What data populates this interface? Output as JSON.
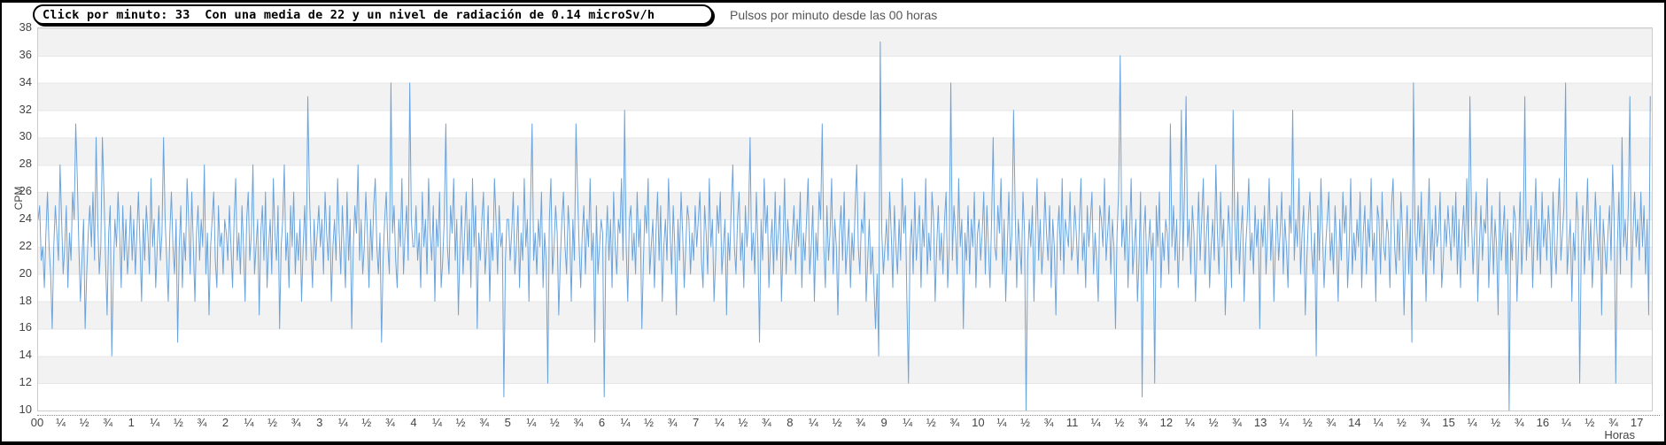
{
  "info_box": {
    "text": "Click por minuto: 33  Con una media de 22 y un nivel de radiación de 0.14 microSv/h",
    "click_por_minuto": 33,
    "media": 22,
    "radiacion_microsv_h": 0.14
  },
  "chart_data": {
    "type": "line",
    "title": "Pulsos por minuto desde las 00 horas",
    "xlabel": "Horas",
    "ylabel": "CPM",
    "ylim": [
      10,
      38
    ],
    "y_ticks": [
      38,
      36,
      34,
      32,
      30,
      28,
      26,
      24,
      22,
      20,
      18,
      16,
      14,
      12,
      10
    ],
    "x_tick_labels": [
      "00",
      "¼",
      "½",
      "¾",
      "1",
      "¼",
      "½",
      "¾",
      "2",
      "¼",
      "½",
      "¾",
      "3",
      "¼",
      "½",
      "¾",
      "4",
      "¼",
      "½",
      "¾",
      "5",
      "¼",
      "½",
      "¾",
      "6",
      "¼",
      "½",
      "¾",
      "7",
      "¼",
      "½",
      "¾",
      "8",
      "¼",
      "½",
      "¾",
      "9",
      "¼",
      "½",
      "¾",
      "10",
      "¼",
      "½",
      "¾",
      "11",
      "¼",
      "½",
      "¾",
      "12",
      "¼",
      "½",
      "¾",
      "13",
      "¼",
      "½",
      "¾",
      "14",
      "¼",
      "½",
      "¾",
      "15",
      "¼",
      "½",
      "¾",
      "16",
      "¼",
      "½",
      "¾",
      "17"
    ],
    "x_unit_minutes_per_point": 1,
    "grid": "horizontal-bands",
    "legend": "none",
    "line_color": "#6aa3dc",
    "band_colors": [
      "#f2f2f2",
      "#ffffff"
    ],
    "series": [
      {
        "name": "CPM",
        "values": [
          24,
          25,
          21,
          22,
          19,
          23,
          26,
          22,
          20,
          16,
          22,
          25,
          23,
          21,
          28,
          24,
          20,
          22,
          25,
          19,
          23,
          21,
          26,
          24,
          31,
          27,
          22,
          18,
          21,
          24,
          16,
          20,
          23,
          25,
          22,
          26,
          21,
          30,
          24,
          20,
          22,
          30,
          26,
          21,
          17,
          23,
          25,
          14,
          20,
          24,
          22,
          26,
          23,
          19,
          25,
          21,
          24,
          20,
          22,
          25,
          21,
          24,
          20,
          23,
          26,
          22,
          18,
          24,
          21,
          25,
          23,
          20,
          27,
          22,
          24,
          19,
          22,
          25,
          21,
          23,
          30,
          24,
          21,
          18,
          23,
          26,
          22,
          20,
          24,
          15,
          22,
          25,
          19,
          23,
          21,
          27,
          24,
          20,
          26,
          22,
          18,
          23,
          25,
          21,
          24,
          22,
          28,
          20,
          23,
          17,
          22,
          24,
          26,
          21,
          19,
          25,
          22,
          23,
          20,
          24,
          23,
          21,
          25,
          22,
          19,
          24,
          27,
          21,
          23,
          20,
          25,
          22,
          18,
          24,
          26,
          21,
          23,
          28,
          20,
          22,
          24,
          17,
          23,
          25,
          21,
          26,
          19,
          22,
          24,
          20,
          27,
          23,
          21,
          25,
          16,
          22,
          24,
          28,
          21,
          23,
          19,
          25,
          22,
          26,
          20,
          23,
          21,
          24,
          18,
          22,
          25,
          21,
          33,
          26,
          22,
          19,
          24,
          21,
          23,
          25,
          22,
          24,
          20,
          26,
          23,
          21,
          25,
          18,
          22,
          24,
          21,
          27,
          23,
          20,
          25,
          22,
          19,
          26,
          21,
          24,
          16,
          22,
          25,
          23,
          28,
          21,
          24,
          20,
          22,
          26,
          23,
          19,
          24,
          21,
          25,
          27,
          22,
          20,
          23,
          15,
          21,
          24,
          26,
          22,
          20,
          34,
          23,
          25,
          21,
          19,
          24,
          22,
          27,
          20,
          23,
          25,
          21,
          34,
          24,
          22,
          22,
          25,
          21,
          23,
          19,
          26,
          22,
          24,
          20,
          27,
          23,
          21,
          25,
          18,
          24,
          22,
          26,
          19,
          21,
          24,
          31,
          22,
          20,
          25,
          23,
          27,
          21,
          24,
          17,
          22,
          25,
          20,
          23,
          26,
          21,
          24,
          19,
          27,
          22,
          25,
          16,
          23,
          21,
          24,
          26,
          20,
          22,
          25,
          18,
          23,
          21,
          27,
          24,
          20,
          25,
          22,
          23,
          11,
          21,
          24,
          24,
          21,
          23,
          26,
          20,
          22,
          25,
          19,
          23,
          21,
          27,
          22,
          24,
          18,
          25,
          31,
          21,
          23,
          20,
          24,
          22,
          26,
          19,
          23,
          21,
          12,
          24,
          27,
          20,
          22,
          25,
          23,
          17,
          21,
          24,
          26,
          22,
          20,
          25,
          23,
          18,
          24,
          21,
          31,
          26,
          22,
          19,
          23,
          25,
          20,
          24,
          22,
          27,
          21,
          23,
          15,
          25,
          20,
          22,
          24,
          23,
          11,
          22,
          25,
          21,
          24,
          19,
          26,
          22,
          20,
          24,
          23,
          27,
          21,
          32,
          22,
          18,
          24,
          25,
          21,
          23,
          20,
          26,
          22,
          24,
          16,
          21,
          25,
          23,
          27,
          20,
          22,
          24,
          19,
          23,
          26,
          21,
          25,
          18,
          22,
          24,
          21,
          27,
          23,
          20,
          25,
          22,
          17,
          24,
          21,
          26,
          23,
          19,
          22,
          25,
          24,
          20,
          23,
          21,
          25,
          22,
          24,
          26,
          21,
          19,
          25,
          23,
          20,
          27,
          22,
          24,
          18,
          21,
          25,
          23,
          26,
          20,
          22,
          24,
          17,
          23,
          21,
          25,
          28,
          22,
          20,
          24,
          26,
          21,
          23,
          19,
          25,
          22,
          24,
          30,
          21,
          23,
          20,
          26,
          22,
          15,
          24,
          21,
          27,
          23,
          25,
          19,
          22,
          24,
          20,
          26,
          21,
          23,
          25,
          18,
          22,
          27,
          20,
          24,
          22,
          21,
          23,
          25,
          20,
          24,
          22,
          26,
          19,
          23,
          21,
          24,
          27,
          20,
          22,
          25,
          18,
          23,
          21,
          26,
          24,
          31,
          22,
          19,
          25,
          21,
          23,
          27,
          20,
          24,
          22,
          17,
          23,
          25,
          21,
          26,
          20,
          22,
          24,
          19,
          23,
          21,
          25,
          28,
          22,
          20,
          24,
          23,
          26,
          18,
          21,
          24,
          20,
          22,
          19,
          16,
          20,
          14,
          37,
          23,
          20,
          22,
          24,
          21,
          26,
          23,
          19,
          25,
          22,
          20,
          24,
          21,
          27,
          23,
          25,
          18,
          12,
          22,
          24,
          20,
          26,
          21,
          23,
          25,
          19,
          24,
          22,
          27,
          20,
          23,
          21,
          26,
          24,
          18,
          22,
          25,
          21,
          23,
          20,
          24,
          26,
          19,
          22,
          34,
          21,
          25,
          23,
          20,
          27,
          22,
          24,
          16,
          23,
          21,
          25,
          20,
          24,
          22,
          26,
          19,
          23,
          24,
          21,
          23,
          26,
          20,
          25,
          22,
          19,
          24,
          30,
          22,
          21,
          25,
          23,
          27,
          20,
          24,
          18,
          22,
          26,
          21,
          23,
          32,
          25,
          19,
          24,
          22,
          20,
          26,
          23,
          10,
          21,
          24,
          22,
          25,
          18,
          23,
          27,
          21,
          24,
          20,
          22,
          26,
          23,
          21,
          25,
          19,
          24,
          22,
          17,
          23,
          25,
          21,
          27,
          20,
          24,
          23,
          22,
          26,
          21,
          22,
          25,
          23,
          20,
          24,
          27,
          21,
          23,
          19,
          25,
          22,
          24,
          26,
          20,
          23,
          21,
          18,
          25,
          24,
          22,
          27,
          21,
          23,
          25,
          20,
          24,
          22,
          16,
          23,
          26,
          36,
          22,
          24,
          21,
          25,
          19,
          23,
          27,
          20,
          22,
          24,
          18,
          21,
          26,
          11,
          23,
          25,
          20,
          22,
          24,
          21,
          23,
          12,
          25,
          22,
          26,
          19,
          23,
          21,
          24,
          23,
          20,
          31,
          22,
          25,
          21,
          24,
          19,
          23,
          32,
          21,
          26,
          33,
          22,
          24,
          20,
          25,
          23,
          18,
          22,
          26,
          21,
          24,
          27,
          20,
          23,
          25,
          19,
          22,
          24,
          21,
          28,
          23,
          20,
          26,
          22,
          24,
          17,
          21,
          25,
          23,
          19,
          32,
          24,
          21,
          26,
          20,
          23,
          25,
          18,
          22,
          24,
          27,
          21,
          23,
          20,
          25,
          22,
          24,
          16,
          24,
          22,
          25,
          20,
          23,
          27,
          21,
          24,
          18,
          22,
          25,
          21,
          23,
          26,
          20,
          24,
          22,
          19,
          25,
          23,
          32,
          21,
          24,
          22,
          27,
          20,
          23,
          25,
          17,
          21,
          24,
          26,
          22,
          20,
          23,
          14,
          25,
          21,
          27,
          23,
          19,
          22,
          24,
          26,
          21,
          23,
          20,
          25,
          22,
          18,
          24,
          21,
          26,
          23,
          25,
          19,
          22,
          27,
          20,
          23,
          21,
          24,
          22,
          26,
          19,
          23,
          25,
          20,
          24,
          22,
          27,
          21,
          23,
          18,
          25,
          24,
          20,
          26,
          22,
          21,
          24,
          23,
          19,
          25,
          27,
          22,
          20,
          24,
          21,
          26,
          23,
          17,
          22,
          25,
          20,
          24,
          15,
          34,
          23,
          21,
          25,
          22,
          26,
          20,
          24,
          18,
          23,
          27,
          21,
          24,
          20,
          25,
          22,
          23,
          26,
          19,
          21,
          24,
          22,
          25,
          23,
          21,
          25,
          22,
          26,
          20,
          24,
          19,
          23,
          25,
          21,
          27,
          22,
          33,
          24,
          20,
          23,
          26,
          18,
          22,
          25,
          21,
          24,
          23,
          27,
          19,
          22,
          25,
          20,
          24,
          22,
          17,
          26,
          21,
          23,
          25,
          20,
          24,
          10,
          23,
          21,
          25,
          24,
          18,
          22,
          26,
          20,
          23,
          33,
          21,
          24,
          22,
          25,
          19,
          23,
          27,
          21,
          24,
          20,
          26,
          22,
          24,
          21,
          25,
          23,
          19,
          26,
          22,
          20,
          24,
          27,
          21,
          23,
          25,
          34,
          20,
          22,
          24,
          18,
          23,
          21,
          26,
          24,
          12,
          22,
          25,
          20,
          23,
          27,
          21,
          24,
          19,
          22,
          26,
          23,
          21,
          25,
          17,
          24,
          22,
          20,
          23,
          25,
          21,
          28,
          24,
          12,
          22,
          26,
          20,
          30,
          22,
          24,
          21,
          25,
          33,
          19,
          23,
          26,
          22,
          24,
          21,
          26,
          22,
          25,
          20,
          24,
          17,
          33
        ]
      }
    ]
  }
}
